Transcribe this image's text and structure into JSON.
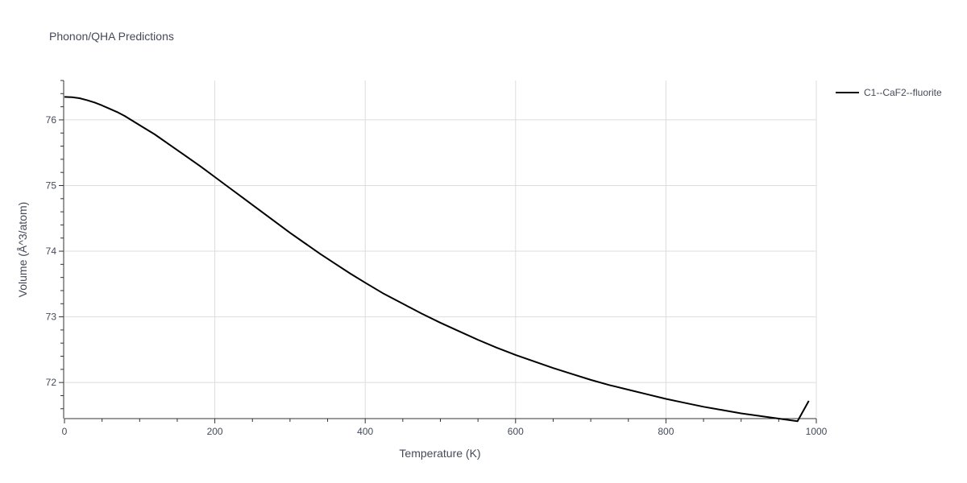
{
  "chart_data": {
    "type": "line",
    "title": "Phonon/QHA Predictions",
    "xlabel": "Temperature (K)",
    "ylabel": "Volume (Å^3/atom)",
    "xlim": [
      0,
      1000
    ],
    "ylim": [
      71.45,
      76.6
    ],
    "x_ticks": [
      0,
      200,
      400,
      600,
      800,
      1000
    ],
    "x_tick_labels": [
      "0",
      "200",
      "400",
      "600",
      "800",
      "1000"
    ],
    "y_ticks": [
      72,
      73,
      74,
      75,
      76
    ],
    "y_tick_labels": [
      "72",
      "73",
      "74",
      "75",
      "76"
    ],
    "x_minor_step": 50,
    "y_minor_step": 0.2,
    "grid": true,
    "legend_position": "top-right",
    "series": [
      {
        "name": "C1--CaF2--fluorite",
        "color": "#000000",
        "x": [
          0,
          10,
          20,
          30,
          40,
          50,
          60,
          70,
          80,
          90,
          100,
          120,
          140,
          160,
          180,
          200,
          220,
          240,
          260,
          280,
          300,
          320,
          340,
          360,
          380,
          400,
          425,
          450,
          475,
          500,
          525,
          550,
          575,
          600,
          625,
          650,
          675,
          700,
          725,
          750,
          775,
          800,
          825,
          850,
          875,
          900,
          925,
          950,
          975,
          990
        ],
        "values": [
          76.35,
          76.345,
          76.33,
          76.3,
          76.265,
          76.22,
          76.17,
          76.12,
          76.06,
          75.99,
          75.92,
          75.78,
          75.62,
          75.46,
          75.3,
          75.13,
          74.96,
          74.79,
          74.62,
          74.45,
          74.28,
          74.12,
          73.96,
          73.81,
          73.66,
          73.52,
          73.35,
          73.2,
          73.05,
          72.91,
          72.78,
          72.65,
          72.53,
          72.42,
          72.32,
          72.22,
          72.13,
          72.04,
          71.96,
          71.89,
          71.82,
          71.75,
          71.69,
          71.63,
          71.58,
          71.53,
          71.49,
          71.45,
          71.41,
          71.72
        ]
      }
    ]
  }
}
